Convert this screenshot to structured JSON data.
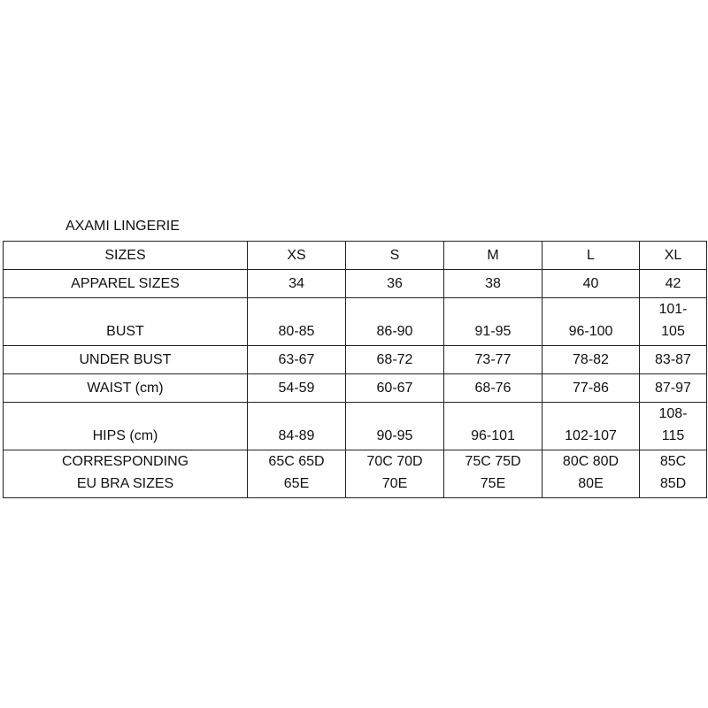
{
  "title": "AXAMI LINGERIE",
  "table": {
    "rows": [
      [
        "SIZES",
        "XS",
        "S",
        "M",
        "L",
        "XL"
      ],
      [
        "APPAREL SIZES",
        "34",
        "36",
        "38",
        "40",
        "42"
      ],
      [
        "BUST",
        "80-85",
        "86-90",
        "91-95",
        "96-100",
        "101-\n105"
      ],
      [
        "UNDER BUST",
        "63-67",
        "68-72",
        "73-77",
        "78-82",
        "83-87"
      ],
      [
        "WAIST (cm)",
        "54-59",
        "60-67",
        "68-76",
        "77-86",
        "87-97"
      ],
      [
        "HIPS (cm)",
        "84-89",
        "90-95",
        "96-101",
        "102-107",
        "108-\n115"
      ],
      [
        "CORRESPONDING\nEU  BRA  SIZES",
        "65C 65D\n65E",
        "70C 70D\n70E",
        "75C 75D\n75E",
        "80C 80D\n80E",
        "85C\n85D"
      ]
    ]
  }
}
